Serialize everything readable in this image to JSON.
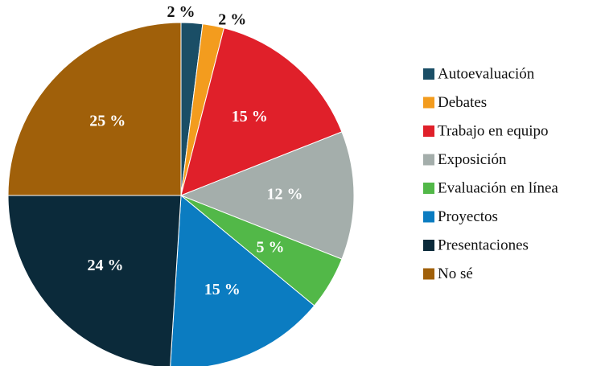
{
  "chart_data": {
    "type": "pie",
    "categories": [
      "Autoevaluación",
      "Debates",
      "Trabajo en equipo",
      "Exposición",
      "Evaluación en línea",
      "Proyectos",
      "Presentaciones",
      "No sé"
    ],
    "values": [
      2,
      2,
      15,
      12,
      5,
      15,
      24,
      25
    ],
    "value_labels": [
      "2 %",
      "2 %",
      "15 %",
      "12 %",
      "5 %",
      "15 %",
      "24 %",
      "25 %"
    ],
    "colors": [
      "#1a4e66",
      "#f39c1e",
      "#e0202a",
      "#a4aeab",
      "#52b848",
      "#0b7cc1",
      "#0b2a3a",
      "#a0600a"
    ],
    "legend": "right"
  }
}
